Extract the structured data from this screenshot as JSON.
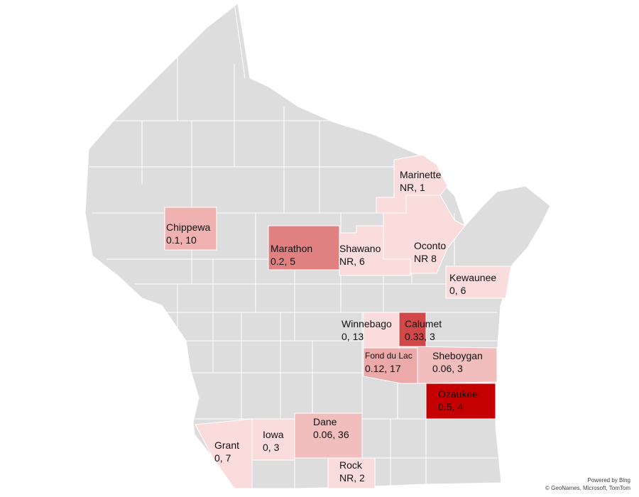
{
  "map": {
    "region": "Wisconsin",
    "colors": {
      "base": "#dddddd",
      "border": "#ffffff",
      "scale": {
        "NR": "#fbdcdc",
        "0": "#fbdcdc",
        "0.06": "#f2bdbd",
        "0.1": "#f0b1b1",
        "0.12": "#eba9a9",
        "0.2": "#e08080",
        "0.33": "#d24848",
        "0.5": "#c40000"
      }
    },
    "counties": [
      {
        "id": "marinette",
        "name": "Marinette",
        "value": "NR, 1"
      },
      {
        "id": "chippewa",
        "name": "Chippewa",
        "value": "0.1, 10"
      },
      {
        "id": "marathon",
        "name": "Marathon",
        "value": "0.2, 5"
      },
      {
        "id": "shawano",
        "name": "Shawano",
        "value": "NR, 6"
      },
      {
        "id": "oconto",
        "name": "Oconto",
        "value": "NR 8"
      },
      {
        "id": "kewaunee",
        "name": "Kewaunee",
        "value": "0, 6"
      },
      {
        "id": "winnebago",
        "name": "Winnebago",
        "value": "0, 13"
      },
      {
        "id": "calumet",
        "name": "Calumet",
        "value": "0.33, 3"
      },
      {
        "id": "fonddulac",
        "name": "Fond du Lac",
        "value": "0.12, 17"
      },
      {
        "id": "sheboygan",
        "name": "Sheboygan",
        "value": "0.06, 3"
      },
      {
        "id": "ozaukee",
        "name": "Ozaukee",
        "value": "0.5, 4"
      },
      {
        "id": "dane",
        "name": "Dane",
        "value": "0.06, 36"
      },
      {
        "id": "iowa",
        "name": "Iowa",
        "value": "0, 3"
      },
      {
        "id": "grant",
        "name": "Grant",
        "value": "0, 7"
      },
      {
        "id": "rock",
        "name": "Rock",
        "value": "NR, 2"
      }
    ]
  },
  "attribution": {
    "line1": "Powered by Bing",
    "line2": "© GeoNames, Microsoft, TomTom"
  }
}
